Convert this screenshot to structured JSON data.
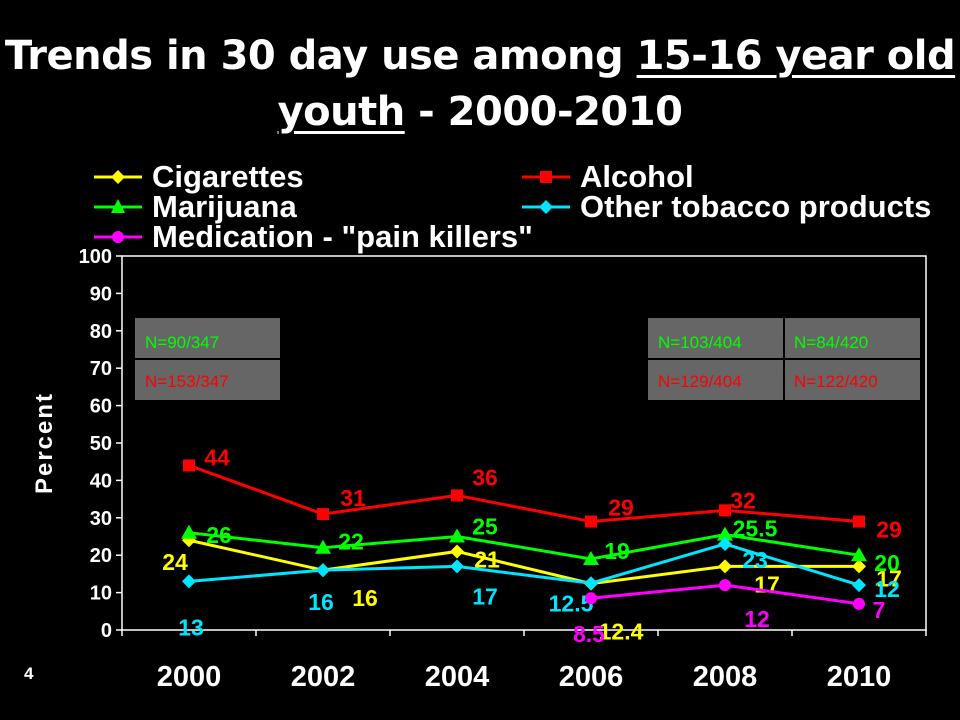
{
  "title_parts": [
    "Trends in 30 day use among ",
    "15-16 year old youth",
    " - 2000-2010"
  ],
  "page_number": "4",
  "colors": {
    "background": "#000000",
    "cigarettes": "#ffff00",
    "alcohol": "#ff0000",
    "marijuana": "#00ff00",
    "other_tobacco": "#00e5ff",
    "pain_killers": "#ff00ff",
    "n_box": "#666666"
  },
  "n_boxes": [
    {
      "top_text": "N=90/347",
      "bottom_text": "N=153/347"
    },
    {
      "top_text": "N=103/404",
      "bottom_text": "N=129/404"
    },
    {
      "top_text": "N=84/420",
      "bottom_text": "N=122/420"
    }
  ],
  "chart_data": {
    "type": "line",
    "title": "Trends in 30 day use among 15-16 year old youth - 2000-2010",
    "xlabel": "",
    "ylabel": "Percent",
    "ylim": [
      0,
      100
    ],
    "yticks": [
      0,
      10,
      20,
      30,
      40,
      50,
      60,
      70,
      80,
      90,
      100
    ],
    "grid": false,
    "legend": "top",
    "categories": [
      "2000",
      "2002",
      "2004",
      "2006",
      "2008",
      "2010"
    ],
    "series": [
      {
        "name": "Cigarettes",
        "color": "#ffff00",
        "marker": "diamond",
        "values": [
          24,
          16,
          21,
          12.4,
          17,
          17
        ],
        "labels": [
          "24",
          "16",
          "21",
          "12.4",
          "17",
          "17"
        ]
      },
      {
        "name": "Alcohol",
        "color": "#ff0000",
        "marker": "square",
        "values": [
          44,
          31,
          36,
          29,
          32,
          29
        ],
        "labels": [
          "44",
          "31",
          "36",
          "29",
          "32",
          "29"
        ]
      },
      {
        "name": "Marijuana",
        "color": "#00ff00",
        "marker": "triangle",
        "values": [
          26,
          22,
          25,
          19,
          25.5,
          20
        ],
        "labels": [
          "26",
          "22",
          "25",
          "19",
          "25.5",
          "20"
        ]
      },
      {
        "name": "Other tobacco products",
        "color": "#00e5ff",
        "marker": "diamond",
        "values": [
          13,
          16,
          17,
          12.5,
          23,
          12
        ],
        "labels": [
          "13",
          "16",
          "17",
          "12.5",
          "23",
          "12"
        ]
      },
      {
        "name": "Medication - \"pain killers\"",
        "color": "#ff00ff",
        "marker": "circle",
        "values": [
          null,
          null,
          null,
          8.5,
          12,
          7
        ],
        "labels": [
          null,
          null,
          null,
          "8.5",
          "12",
          "7"
        ]
      }
    ]
  }
}
